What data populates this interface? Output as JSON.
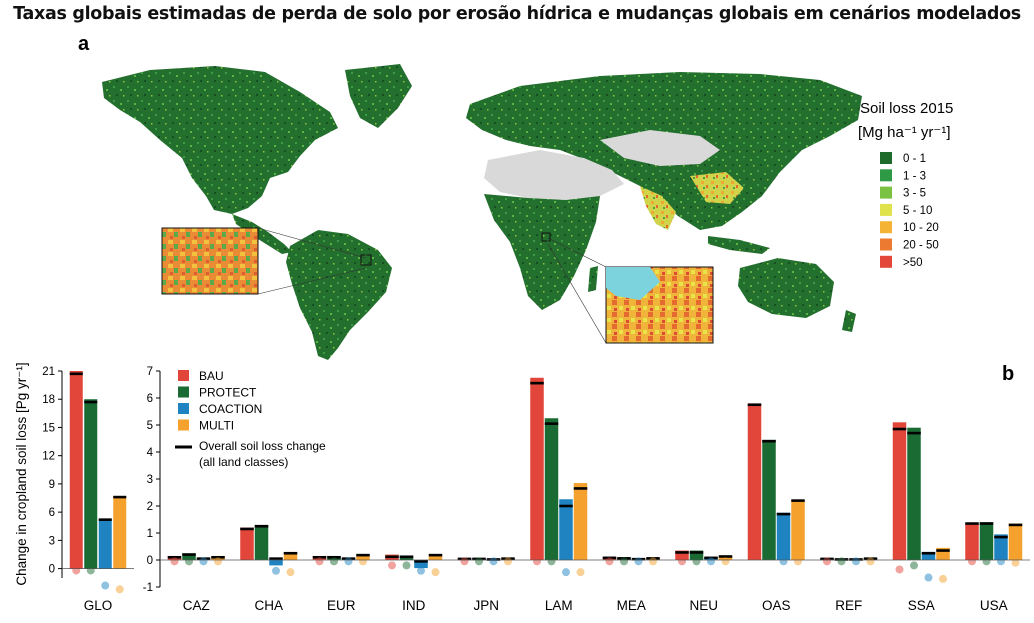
{
  "page_title": "Taxas globais estimadas de perda de solo por erosão hídrica e mudanças globais em cenários modelados",
  "panel_a": {
    "label": "a",
    "legend_title": "Soil loss 2015",
    "legend_unit": "[Mg ha⁻¹ yr⁻¹]",
    "legend_items": [
      {
        "label": "0 - 1",
        "color": "#1e6b2c"
      },
      {
        "label": "1 - 3",
        "color": "#2f9a45"
      },
      {
        "label": "3 - 5",
        "color": "#7cc242"
      },
      {
        "label": "5 - 10",
        "color": "#dfe24a"
      },
      {
        "label": "10 - 20",
        "color": "#f5b335"
      },
      {
        "label": "20 - 50",
        "color": "#ec7a30"
      },
      {
        "label": ">50",
        "color": "#e2473a"
      }
    ],
    "colors": {
      "ocean": "#ffffff",
      "no_data": "#d9d9d9",
      "land": "#2a7a33"
    }
  },
  "panel_b": {
    "label": "b",
    "legend": [
      {
        "name": "BAU",
        "color": "#e2453a"
      },
      {
        "name": "PROTECT",
        "color": "#1a6b33"
      },
      {
        "name": "COACTION",
        "color": "#1f83c1"
      },
      {
        "name": "MULTI",
        "color": "#f4a12d"
      }
    ],
    "overall_legend": "Overall soil loss change",
    "overall_legend_sub": "(all land classes)"
  },
  "chart_data": [
    {
      "type": "bar",
      "title": "",
      "xlabel": "",
      "ylabel": "Change in cropland soil loss [Pg yr⁻¹]",
      "ylim": [
        -1,
        21
      ],
      "yticks": [
        0,
        3,
        6,
        9,
        12,
        15,
        18,
        21
      ],
      "categories": [
        "GLO"
      ],
      "series": [
        {
          "name": "BAU",
          "values": [
            21.0
          ],
          "overall": [
            20.7
          ],
          "dot": [
            -0.2
          ]
        },
        {
          "name": "PROTECT",
          "values": [
            18.0
          ],
          "overall": [
            17.7
          ],
          "dot": [
            -0.2
          ]
        },
        {
          "name": "COACTION",
          "values": [
            5.3
          ],
          "overall": [
            5.2
          ],
          "dot": [
            -1.8
          ]
        },
        {
          "name": "MULTI",
          "values": [
            7.7
          ],
          "overall": [
            7.6
          ],
          "dot": [
            -2.2
          ]
        }
      ]
    },
    {
      "type": "bar",
      "title": "",
      "xlabel": "",
      "ylabel": "",
      "ylim": [
        -1,
        7
      ],
      "yticks": [
        -1,
        0,
        1,
        2,
        3,
        4,
        5,
        6,
        7
      ],
      "categories": [
        "CAZ",
        "CHA",
        "EUR",
        "IND",
        "JPN",
        "LAM",
        "MEA",
        "NEU",
        "OAS",
        "REF",
        "SSA",
        "USA"
      ],
      "series": [
        {
          "name": "BAU",
          "values": [
            0.15,
            1.2,
            0.15,
            0.2,
            0.06,
            6.75,
            0.12,
            0.35,
            5.8,
            0.06,
            5.1,
            1.35
          ],
          "overall": [
            0.1,
            1.15,
            0.1,
            0.12,
            0.04,
            6.55,
            0.08,
            0.28,
            5.75,
            0.04,
            4.85,
            1.35
          ],
          "dot": [
            -0.05,
            0.25,
            -0.05,
            -0.2,
            -0.05,
            -0.05,
            -0.05,
            -0.05,
            0.25,
            -0.05,
            -0.35,
            -0.05
          ]
        },
        {
          "name": "PROTECT",
          "values": [
            0.25,
            1.3,
            0.15,
            0.15,
            0.06,
            5.25,
            0.1,
            0.35,
            4.45,
            0.05,
            4.9,
            1.4
          ],
          "overall": [
            0.2,
            1.25,
            0.1,
            0.12,
            0.04,
            5.05,
            0.06,
            0.28,
            4.4,
            0.02,
            4.7,
            1.35
          ],
          "dot": [
            -0.05,
            0.25,
            -0.05,
            -0.2,
            -0.05,
            -0.05,
            -0.05,
            -0.05,
            0.2,
            -0.05,
            -0.2,
            -0.05
          ]
        },
        {
          "name": "COACTION",
          "values": [
            0.05,
            -0.2,
            0.05,
            -0.3,
            0.03,
            2.25,
            0.04,
            0.1,
            1.75,
            0.02,
            0.3,
            0.95
          ],
          "overall": [
            0.05,
            0.05,
            0.05,
            -0.05,
            0.02,
            2.0,
            0.03,
            0.08,
            1.7,
            0.02,
            0.25,
            0.85
          ],
          "dot": [
            -0.05,
            -0.4,
            -0.05,
            -0.4,
            -0.05,
            -0.45,
            -0.05,
            -0.05,
            -0.05,
            -0.05,
            -0.65,
            -0.05
          ]
        },
        {
          "name": "MULTI",
          "values": [
            0.15,
            0.3,
            0.2,
            0.2,
            0.06,
            2.85,
            0.08,
            0.15,
            2.2,
            0.06,
            0.45,
            1.35
          ],
          "overall": [
            0.1,
            0.25,
            0.18,
            0.18,
            0.05,
            2.65,
            0.06,
            0.13,
            2.2,
            0.05,
            0.35,
            1.3
          ],
          "dot": [
            -0.05,
            -0.45,
            -0.05,
            -0.45,
            -0.05,
            -0.45,
            -0.05,
            -0.05,
            -0.05,
            -0.05,
            -0.7,
            -0.1
          ]
        }
      ]
    }
  ]
}
